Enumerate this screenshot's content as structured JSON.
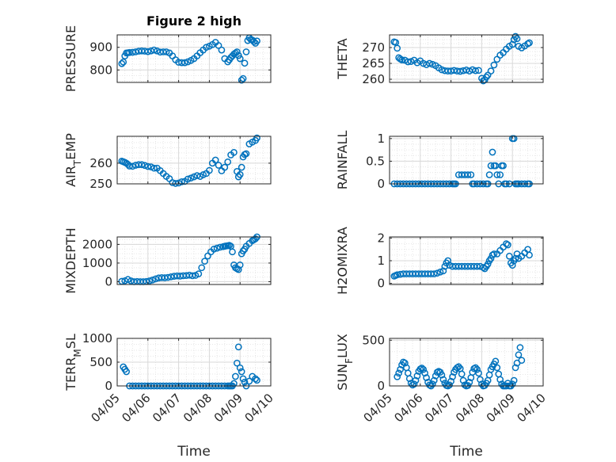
{
  "figure_title": "Figure 2 high",
  "colors": {
    "marker": "#0072BD",
    "axis": "#262626",
    "grid": "#d8d8d8"
  },
  "chart_data": [
    {
      "type": "scatter",
      "ylabel": "PRESSURE",
      "xlabel": "",
      "title": "Figure 2 high",
      "xlim": [
        0,
        5
      ],
      "ylim": [
        745,
        955
      ],
      "yticks": [
        800,
        900
      ],
      "ytick_labels": [
        "800",
        "900"
      ],
      "x_tick_labels": [
        "04/05",
        "04/06",
        "04/07",
        "04/08",
        "04/09",
        "04/10"
      ],
      "grid": true,
      "x": [
        0.15,
        0.2,
        0.25,
        0.3,
        0.35,
        0.4,
        0.5,
        0.6,
        0.7,
        0.8,
        0.9,
        1.0,
        1.1,
        1.2,
        1.3,
        1.4,
        1.5,
        1.6,
        1.7,
        1.8,
        1.9,
        2.0,
        2.1,
        2.2,
        2.3,
        2.4,
        2.5,
        2.6,
        2.7,
        2.8,
        2.9,
        3.0,
        3.1,
        3.2,
        3.3,
        3.4,
        3.5,
        3.6,
        3.65,
        3.7,
        3.75,
        3.8,
        3.85,
        3.9,
        3.95,
        4.0,
        4.05,
        4.1,
        4.15,
        4.2,
        4.25,
        4.3,
        4.35,
        4.4,
        4.45,
        4.5,
        4.55
      ],
      "y": [
        828,
        835,
        862,
        875,
        876,
        877,
        878,
        880,
        883,
        884,
        883,
        881,
        884,
        888,
        884,
        879,
        880,
        880,
        875,
        862,
        845,
        834,
        832,
        832,
        836,
        842,
        850,
        862,
        876,
        888,
        900,
        905,
        912,
        922,
        908,
        888,
        850,
        836,
        845,
        855,
        862,
        870,
        875,
        880,
        864,
        850,
        755,
        762,
        830,
        880,
        930,
        942,
        935,
        932,
        925,
        918,
        928
      ]
    },
    {
      "type": "scatter",
      "ylabel": "THETA",
      "xlabel": "",
      "title": "",
      "xlim": [
        0,
        5
      ],
      "ylim": [
        259,
        274
      ],
      "yticks": [
        260,
        265,
        270
      ],
      "ytick_labels": [
        "260",
        "265",
        "270"
      ],
      "x_tick_labels": [
        "04/05",
        "04/06",
        "04/07",
        "04/08",
        "04/09",
        "04/10"
      ],
      "grid": true,
      "x": [
        0.15,
        0.2,
        0.25,
        0.3,
        0.35,
        0.4,
        0.5,
        0.6,
        0.7,
        0.8,
        0.9,
        1.0,
        1.1,
        1.2,
        1.3,
        1.4,
        1.5,
        1.6,
        1.7,
        1.8,
        1.9,
        2.0,
        2.1,
        2.2,
        2.3,
        2.4,
        2.5,
        2.6,
        2.7,
        2.8,
        2.9,
        3.0,
        3.05,
        3.1,
        3.15,
        3.2,
        3.3,
        3.4,
        3.5,
        3.6,
        3.7,
        3.8,
        3.9,
        4.0,
        4.05,
        4.1,
        4.15,
        4.2,
        4.3,
        4.4,
        4.5,
        4.55
      ],
      "y": [
        271.8,
        271.6,
        269.8,
        266.8,
        266.4,
        266.1,
        266.0,
        265.5,
        265.6,
        266.0,
        265.2,
        265.8,
        265.0,
        264.6,
        265.0,
        264.7,
        264.3,
        263.6,
        263.0,
        262.7,
        262.6,
        262.6,
        262.8,
        262.6,
        262.5,
        262.7,
        262.9,
        262.6,
        263.0,
        262.7,
        262.8,
        260.3,
        259.5,
        259.8,
        260.7,
        261.3,
        262.6,
        264.5,
        266.3,
        267.6,
        268.4,
        269.5,
        270.4,
        271.0,
        272.5,
        273.5,
        272.8,
        270.4,
        269.9,
        270.5,
        271.2,
        271.5
      ]
    },
    {
      "type": "scatter",
      "ylabel": "AIR_TEMP",
      "xlabel": "",
      "title": "",
      "xlim": [
        0,
        5
      ],
      "ylim": [
        250,
        273
      ],
      "yticks": [
        250,
        260
      ],
      "ytick_labels": [
        "250",
        "260"
      ],
      "x_tick_labels": [
        "04/05",
        "04/06",
        "04/07",
        "04/08",
        "04/09",
        "04/10"
      ],
      "grid": true,
      "x": [
        0.15,
        0.2,
        0.25,
        0.3,
        0.35,
        0.4,
        0.5,
        0.6,
        0.7,
        0.8,
        0.9,
        1.0,
        1.1,
        1.2,
        1.3,
        1.4,
        1.5,
        1.6,
        1.7,
        1.8,
        1.9,
        2.0,
        2.1,
        2.2,
        2.3,
        2.4,
        2.5,
        2.6,
        2.7,
        2.8,
        2.9,
        3.0,
        3.1,
        3.2,
        3.3,
        3.4,
        3.5,
        3.6,
        3.7,
        3.8,
        3.9,
        3.95,
        4.0,
        4.05,
        4.1,
        4.15,
        4.2,
        4.3,
        4.4,
        4.5,
        4.55
      ],
      "y": [
        261.0,
        260.7,
        260.4,
        260.0,
        259.4,
        258.6,
        258.5,
        259.0,
        259.3,
        259.3,
        258.9,
        258.4,
        258.2,
        257.6,
        257.6,
        256.4,
        255.0,
        253.6,
        252.5,
        250.6,
        250.2,
        250.4,
        251.0,
        251.2,
        252.3,
        252.8,
        253.4,
        254.0,
        253.6,
        254.4,
        255.0,
        256.5,
        260.0,
        261.5,
        259.0,
        256.3,
        258.0,
        260.6,
        264.0,
        265.2,
        256.0,
        253.4,
        254.5,
        258.0,
        263.0,
        264.2,
        264.6,
        269.3,
        270.2,
        271.0,
        272.2
      ]
    },
    {
      "type": "scatter",
      "ylabel": "RAINFALL",
      "xlabel": "",
      "title": "",
      "xlim": [
        0,
        5
      ],
      "ylim": [
        0,
        1.05
      ],
      "yticks": [
        0,
        0.5,
        1
      ],
      "ytick_labels": [
        "0",
        "0.5",
        "1"
      ],
      "x_tick_labels": [
        "04/05",
        "04/06",
        "04/07",
        "04/08",
        "04/09",
        "04/10"
      ],
      "grid": true,
      "x": [
        0.15,
        0.25,
        0.35,
        0.45,
        0.55,
        0.65,
        0.75,
        0.85,
        0.95,
        1.05,
        1.15,
        1.25,
        1.35,
        1.45,
        1.55,
        1.65,
        1.75,
        1.85,
        1.95,
        2.05,
        2.1,
        2.15,
        2.25,
        2.35,
        2.45,
        2.55,
        2.65,
        2.7,
        2.75,
        2.85,
        2.95,
        3.05,
        3.15,
        3.2,
        3.25,
        3.3,
        3.35,
        3.4,
        3.45,
        3.5,
        3.55,
        3.6,
        3.65,
        3.7,
        3.75,
        3.8,
        3.9,
        4.0,
        4.05,
        4.1,
        4.15,
        4.2,
        4.3,
        4.4,
        4.5,
        4.55
      ],
      "y": [
        0,
        0,
        0,
        0,
        0,
        0,
        0,
        0,
        0,
        0,
        0,
        0,
        0,
        0,
        0,
        0,
        0,
        0,
        0,
        0,
        0,
        0,
        0.2,
        0.2,
        0.2,
        0.2,
        0.2,
        0,
        0,
        0,
        0,
        0,
        0,
        0,
        0.2,
        0.4,
        0.7,
        0.4,
        0.4,
        0.2,
        0,
        0.2,
        0.4,
        0.4,
        0,
        0,
        0,
        1.0,
        1.0,
        0,
        0,
        0,
        0,
        0,
        0,
        0
      ]
    },
    {
      "type": "scatter",
      "ylabel": "MIXDEPTH",
      "xlabel": "",
      "title": "",
      "xlim": [
        0,
        5
      ],
      "ylim": [
        -150,
        2400
      ],
      "yticks": [
        0,
        1000,
        2000
      ],
      "ytick_labels": [
        "0",
        "1000",
        "2000"
      ],
      "x_tick_labels": [
        "04/05",
        "04/06",
        "04/07",
        "04/08",
        "04/09",
        "04/10"
      ],
      "grid": true,
      "x": [
        0.15,
        0.25,
        0.35,
        0.45,
        0.55,
        0.65,
        0.75,
        0.85,
        0.95,
        1.05,
        1.15,
        1.25,
        1.35,
        1.45,
        1.55,
        1.65,
        1.75,
        1.85,
        1.95,
        2.05,
        2.15,
        2.25,
        2.35,
        2.45,
        2.55,
        2.65,
        2.75,
        2.85,
        2.95,
        3.05,
        3.15,
        3.25,
        3.35,
        3.45,
        3.5,
        3.55,
        3.6,
        3.65,
        3.7,
        3.75,
        3.8,
        3.85,
        3.9,
        3.95,
        4.0,
        4.05,
        4.1,
        4.15,
        4.2,
        4.3,
        4.4,
        4.45,
        4.5,
        4.55
      ],
      "y": [
        20,
        50,
        120,
        40,
        0,
        10,
        0,
        0,
        10,
        40,
        90,
        150,
        200,
        220,
        210,
        230,
        260,
        290,
        310,
        300,
        320,
        330,
        350,
        320,
        340,
        420,
        750,
        1100,
        1380,
        1600,
        1750,
        1800,
        1850,
        1880,
        1900,
        1920,
        1930,
        1950,
        1900,
        1600,
        900,
        750,
        700,
        650,
        900,
        1500,
        1650,
        1750,
        1900,
        2050,
        2200,
        2250,
        2300,
        2400
      ]
    },
    {
      "type": "scatter",
      "ylabel": "H2OMIXRA",
      "xlabel": "",
      "title": "",
      "xlim": [
        0,
        5
      ],
      "ylim": [
        -0.05,
        2.05
      ],
      "yticks": [
        0,
        1,
        2
      ],
      "ytick_labels": [
        "0",
        "1",
        "2"
      ],
      "x_tick_labels": [
        "04/05",
        "04/06",
        "04/07",
        "04/08",
        "04/09",
        "04/10"
      ],
      "grid": true,
      "x": [
        0.15,
        0.2,
        0.25,
        0.35,
        0.45,
        0.55,
        0.65,
        0.75,
        0.85,
        0.95,
        1.05,
        1.15,
        1.25,
        1.35,
        1.45,
        1.55,
        1.65,
        1.75,
        1.8,
        1.85,
        1.9,
        1.95,
        2.05,
        2.15,
        2.25,
        2.35,
        2.45,
        2.55,
        2.65,
        2.75,
        2.85,
        2.95,
        3.05,
        3.1,
        3.15,
        3.2,
        3.25,
        3.3,
        3.35,
        3.4,
        3.5,
        3.6,
        3.7,
        3.8,
        3.85,
        3.9,
        3.95,
        4.0,
        4.05,
        4.1,
        4.15,
        4.2,
        4.3,
        4.4,
        4.5,
        4.55
      ],
      "y": [
        0.32,
        0.35,
        0.38,
        0.4,
        0.42,
        0.42,
        0.42,
        0.42,
        0.42,
        0.42,
        0.42,
        0.42,
        0.42,
        0.42,
        0.42,
        0.45,
        0.5,
        0.55,
        0.75,
        0.9,
        1.0,
        0.8,
        0.75,
        0.75,
        0.75,
        0.75,
        0.75,
        0.75,
        0.75,
        0.75,
        0.75,
        0.75,
        0.7,
        0.65,
        0.75,
        0.85,
        1.0,
        1.1,
        1.25,
        1.3,
        1.3,
        1.45,
        1.6,
        1.75,
        1.7,
        1.2,
        0.9,
        0.8,
        1.0,
        1.1,
        1.3,
        1.1,
        1.2,
        1.35,
        1.5,
        1.25
      ]
    },
    {
      "type": "scatter",
      "ylabel": "TERR_MSL",
      "xlabel": "Time",
      "title": "",
      "xlim": [
        0,
        5
      ],
      "ylim": [
        0,
        1000
      ],
      "yticks": [
        0,
        500,
        1000
      ],
      "ytick_labels": [
        "0",
        "500",
        "1000"
      ],
      "x_tick_labels": [
        "04/05",
        "04/06",
        "04/07",
        "04/08",
        "04/09",
        "04/10"
      ],
      "grid": true,
      "x": [
        0.2,
        0.25,
        0.3,
        0.4,
        0.5,
        0.6,
        0.7,
        0.8,
        0.9,
        1.0,
        1.1,
        1.2,
        1.3,
        1.4,
        1.5,
        1.6,
        1.7,
        1.8,
        1.9,
        2.0,
        2.1,
        2.2,
        2.3,
        2.4,
        2.5,
        2.6,
        2.7,
        2.8,
        2.9,
        3.0,
        3.1,
        3.2,
        3.3,
        3.4,
        3.5,
        3.6,
        3.65,
        3.7,
        3.75,
        3.8,
        3.85,
        3.9,
        3.95,
        4.0,
        4.05,
        4.1,
        4.15,
        4.2,
        4.3,
        4.4,
        4.5,
        4.55
      ],
      "y": [
        400,
        350,
        300,
        0,
        0,
        0,
        0,
        0,
        0,
        0,
        0,
        0,
        0,
        0,
        0,
        0,
        0,
        0,
        0,
        0,
        0,
        0,
        0,
        0,
        0,
        0,
        0,
        0,
        0,
        0,
        0,
        0,
        0,
        0,
        0,
        0,
        0,
        0,
        0,
        50,
        200,
        480,
        820,
        380,
        300,
        150,
        80,
        0,
        100,
        200,
        150,
        120
      ]
    },
    {
      "type": "scatter",
      "ylabel": "SUN_FLUX",
      "xlabel": "Time",
      "title": "",
      "xlim": [
        0,
        5
      ],
      "ylim": [
        0,
        520
      ],
      "yticks": [
        0,
        500
      ],
      "ytick_labels": [
        "0",
        "500"
      ],
      "x_tick_labels": [
        "04/05",
        "04/06",
        "04/07",
        "04/08",
        "04/09",
        "04/10"
      ],
      "grid": true,
      "x": [
        0.25,
        0.3,
        0.35,
        0.4,
        0.45,
        0.5,
        0.55,
        0.6,
        0.65,
        0.7,
        0.75,
        0.8,
        0.85,
        0.9,
        0.95,
        1.0,
        1.05,
        1.1,
        1.15,
        1.2,
        1.25,
        1.3,
        1.35,
        1.4,
        1.45,
        1.5,
        1.55,
        1.6,
        1.65,
        1.7,
        1.75,
        1.8,
        1.85,
        1.9,
        1.95,
        2.0,
        2.05,
        2.1,
        2.15,
        2.2,
        2.25,
        2.3,
        2.35,
        2.4,
        2.45,
        2.5,
        2.55,
        2.6,
        2.65,
        2.7,
        2.75,
        2.8,
        2.85,
        2.9,
        2.95,
        3.0,
        3.05,
        3.1,
        3.15,
        3.2,
        3.25,
        3.3,
        3.35,
        3.4,
        3.45,
        3.5,
        3.55,
        3.6,
        3.65,
        3.7,
        3.75,
        3.8,
        3.85,
        3.9,
        3.95,
        4.0,
        4.05,
        4.1,
        4.15,
        4.2,
        4.25,
        4.3
      ],
      "y": [
        100,
        140,
        180,
        230,
        260,
        250,
        200,
        140,
        80,
        30,
        10,
        20,
        60,
        110,
        160,
        185,
        195,
        180,
        140,
        90,
        40,
        10,
        0,
        20,
        60,
        110,
        150,
        160,
        150,
        120,
        70,
        30,
        5,
        0,
        10,
        50,
        100,
        150,
        180,
        200,
        210,
        190,
        130,
        60,
        10,
        0,
        5,
        40,
        90,
        150,
        190,
        200,
        180,
        140,
        70,
        20,
        0,
        5,
        30,
        60,
        120,
        180,
        210,
        240,
        270,
        200,
        130,
        70,
        20,
        0,
        0,
        0,
        30,
        0,
        0,
        20,
        60,
        200,
        250,
        340,
        420,
        280
      ]
    }
  ]
}
